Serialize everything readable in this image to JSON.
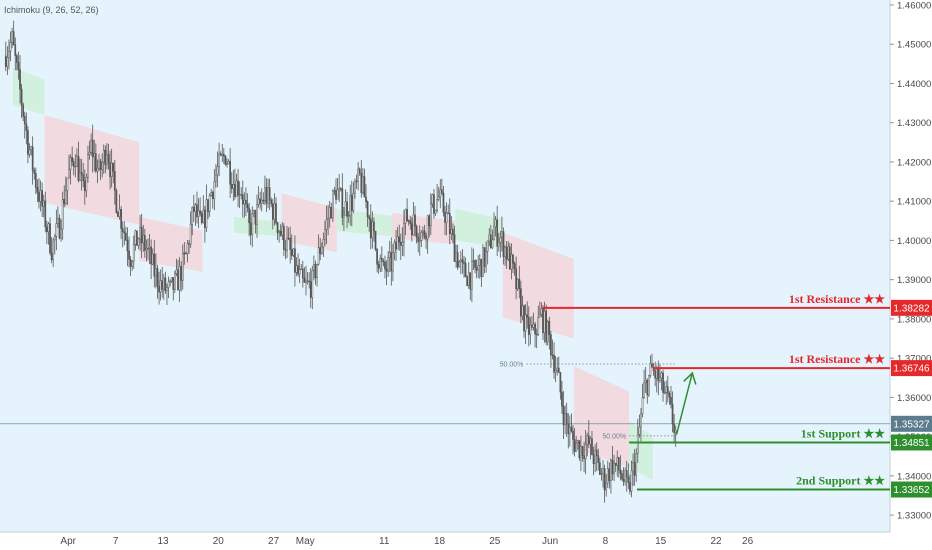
{
  "indicator": "Ichimoku (9, 26, 52, 26)",
  "colors": {
    "background": "#e5f4fc",
    "candle": "#555555",
    "cloud_bearish": "#f3d6dc",
    "cloud_bullish": "#cfeed8",
    "resistance": "#e5282b",
    "support": "#2e8f2e",
    "current_price": "#5b7c8c",
    "fib": "#6b7f8d",
    "arrow": "#2e8f2e"
  },
  "chart_data": {
    "type": "candlestick",
    "title": "",
    "xlabel": "",
    "ylabel": "",
    "ylim": [
      1.3285,
      1.4605
    ],
    "y_ticks": [
      "1.46000",
      "1.45000",
      "1.44000",
      "1.43000",
      "1.42000",
      "1.41000",
      "1.40000",
      "1.39000",
      "1.38000",
      "1.37000",
      "1.36000",
      "1.35000",
      "1.34000",
      "1.33000"
    ],
    "x_ticks": [
      "Apr",
      "7",
      "13",
      "20",
      "27",
      "May",
      "11",
      "18",
      "25",
      "Jun",
      "8",
      "15",
      "22",
      "26"
    ],
    "grid": false,
    "price_path": [
      [
        "Mar 24",
        1.447
      ],
      [
        "Mar 25",
        1.451
      ],
      [
        "Mar 26",
        1.438
      ],
      [
        "Mar 27",
        1.425
      ],
      [
        "Mar 28",
        1.415
      ],
      [
        "Mar 29",
        1.407
      ],
      [
        "Mar 30",
        1.398
      ],
      [
        "Mar 31",
        1.404
      ],
      [
        "Apr 1",
        1.416
      ],
      [
        "Apr 2",
        1.422
      ],
      [
        "Apr 3",
        1.412
      ],
      [
        "Apr 4",
        1.424
      ],
      [
        "Apr 5",
        1.417
      ],
      [
        "Apr 6",
        1.424
      ],
      [
        "Apr 7",
        1.412
      ],
      [
        "Apr 8",
        1.404
      ],
      [
        "Apr 9",
        1.396
      ],
      [
        "Apr 10",
        1.401
      ],
      [
        "Apr 11",
        1.398
      ],
      [
        "Apr 12",
        1.392
      ],
      [
        "Apr 13",
        1.388
      ],
      [
        "Apr 14",
        1.387
      ],
      [
        "Apr 15",
        1.39
      ],
      [
        "Apr 16",
        1.396
      ],
      [
        "Apr 17",
        1.408
      ],
      [
        "Apr 18",
        1.403
      ],
      [
        "Apr 19",
        1.411
      ],
      [
        "Apr 20",
        1.418
      ],
      [
        "Apr 21",
        1.422
      ],
      [
        "Apr 22",
        1.415
      ],
      [
        "Apr 23",
        1.413
      ],
      [
        "Apr 24",
        1.403
      ],
      [
        "Apr 25",
        1.407
      ],
      [
        "Apr 26",
        1.412
      ],
      [
        "Apr 27",
        1.408
      ],
      [
        "Apr 28",
        1.402
      ],
      [
        "Apr 29",
        1.398
      ],
      [
        "Apr 30",
        1.392
      ],
      [
        "May 1",
        1.388
      ],
      [
        "May 2",
        1.389
      ],
      [
        "May 3",
        1.398
      ],
      [
        "May 4",
        1.406
      ],
      [
        "May 5",
        1.413
      ],
      [
        "May 6",
        1.408
      ],
      [
        "May 7",
        1.41
      ],
      [
        "May 8",
        1.416
      ],
      [
        "May 9",
        1.408
      ],
      [
        "May 10",
        1.398
      ],
      [
        "May 11",
        1.392
      ],
      [
        "May 12",
        1.394
      ],
      [
        "May 13",
        1.401
      ],
      [
        "May 14",
        1.406
      ],
      [
        "May 15",
        1.404
      ],
      [
        "May 16",
        1.401
      ],
      [
        "May 17",
        1.408
      ],
      [
        "May 18",
        1.411
      ],
      [
        "May 19",
        1.406
      ],
      [
        "May 20",
        1.398
      ],
      [
        "May 21",
        1.392
      ],
      [
        "May 22",
        1.391
      ],
      [
        "May 23",
        1.393
      ],
      [
        "May 24",
        1.396
      ],
      [
        "May 25",
        1.403
      ],
      [
        "May 26",
        1.4
      ],
      [
        "May 27",
        1.395
      ],
      [
        "May 28",
        1.387
      ],
      [
        "May 29",
        1.378
      ],
      [
        "May 30",
        1.376
      ],
      [
        "May 31",
        1.381
      ],
      [
        "Jun 1",
        1.375
      ],
      [
        "Jun 2",
        1.366
      ],
      [
        "Jun 3",
        1.354
      ],
      [
        "Jun 4",
        1.349
      ],
      [
        "Jun 5",
        1.347
      ],
      [
        "Jun 6",
        1.348
      ],
      [
        "Jun 7",
        1.343
      ],
      [
        "Jun 8",
        1.339
      ],
      [
        "Jun 9",
        1.343
      ],
      [
        "Jun 10",
        1.341
      ],
      [
        "Jun 11",
        1.336
      ],
      [
        "Jun 12",
        1.345
      ],
      [
        "Jun 13",
        1.362
      ],
      [
        "Jun 14",
        1.367
      ],
      [
        "Jun 15",
        1.364
      ],
      [
        "Jun 16",
        1.359
      ],
      [
        "Jun 17",
        1.351
      ]
    ],
    "ichimoku_cloud": [
      {
        "from": "Mar 25",
        "to": "Mar 29",
        "top": 1.444,
        "bottom": 1.432,
        "color": "bullish"
      },
      {
        "from": "Mar 29",
        "to": "Apr 10",
        "top": 1.432,
        "bottom": 1.404,
        "color": "bearish"
      },
      {
        "from": "Apr 10",
        "to": "Apr 18",
        "top": 1.406,
        "bottom": 1.392,
        "color": "bearish"
      },
      {
        "from": "Apr 22",
        "to": "Apr 28",
        "top": 1.406,
        "bottom": 1.401,
        "color": "bullish"
      },
      {
        "from": "Apr 28",
        "to": "May 5",
        "top": 1.412,
        "bottom": 1.397,
        "color": "bearish"
      },
      {
        "from": "May 5",
        "to": "May 12",
        "top": 1.408,
        "bottom": 1.401,
        "color": "bullish"
      },
      {
        "from": "May 12",
        "to": "May 20",
        "top": 1.407,
        "bottom": 1.399,
        "color": "bearish"
      },
      {
        "from": "May 20",
        "to": "May 26",
        "top": 1.408,
        "bottom": 1.398,
        "color": "bullish"
      },
      {
        "from": "May 26",
        "to": "Jun 4",
        "top": 1.402,
        "bottom": 1.375,
        "color": "bearish"
      },
      {
        "from": "Jun 4",
        "to": "Jun 11",
        "top": 1.368,
        "bottom": 1.342,
        "color": "bearish"
      },
      {
        "from": "Jun 11",
        "to": "Jun 14",
        "top": 1.354,
        "bottom": 1.339,
        "color": "bullish"
      }
    ],
    "levels": [
      {
        "name": "1st Resistance ★★",
        "price": "1.38282",
        "value": 1.38282,
        "from": "May 31",
        "kind": "resistance"
      },
      {
        "name": "1st Resistance ★★",
        "price": "1.36746",
        "value": 1.36746,
        "from": "Jun 14",
        "kind": "resistance"
      },
      {
        "name": "1st Support ★★",
        "price": "1.34851",
        "value": 1.34851,
        "from": "Jun 11",
        "kind": "support"
      },
      {
        "name": "2nd Support ★★",
        "price": "1.33652",
        "value": 1.33652,
        "from": "Jun 12",
        "kind": "support"
      }
    ],
    "current_price": {
      "price": "1.35327",
      "value": 1.35327
    },
    "fib_levels": [
      {
        "label": "50.00%",
        "value": 1.3685,
        "from": "May 29"
      },
      {
        "label": "50.00%",
        "value": 1.3502,
        "from": "Jun 11"
      }
    ],
    "projection_arrow": {
      "from_date": "Jun 17",
      "from_value": 1.3505,
      "to_date": "Jun 19",
      "to_value": 1.3662
    }
  }
}
